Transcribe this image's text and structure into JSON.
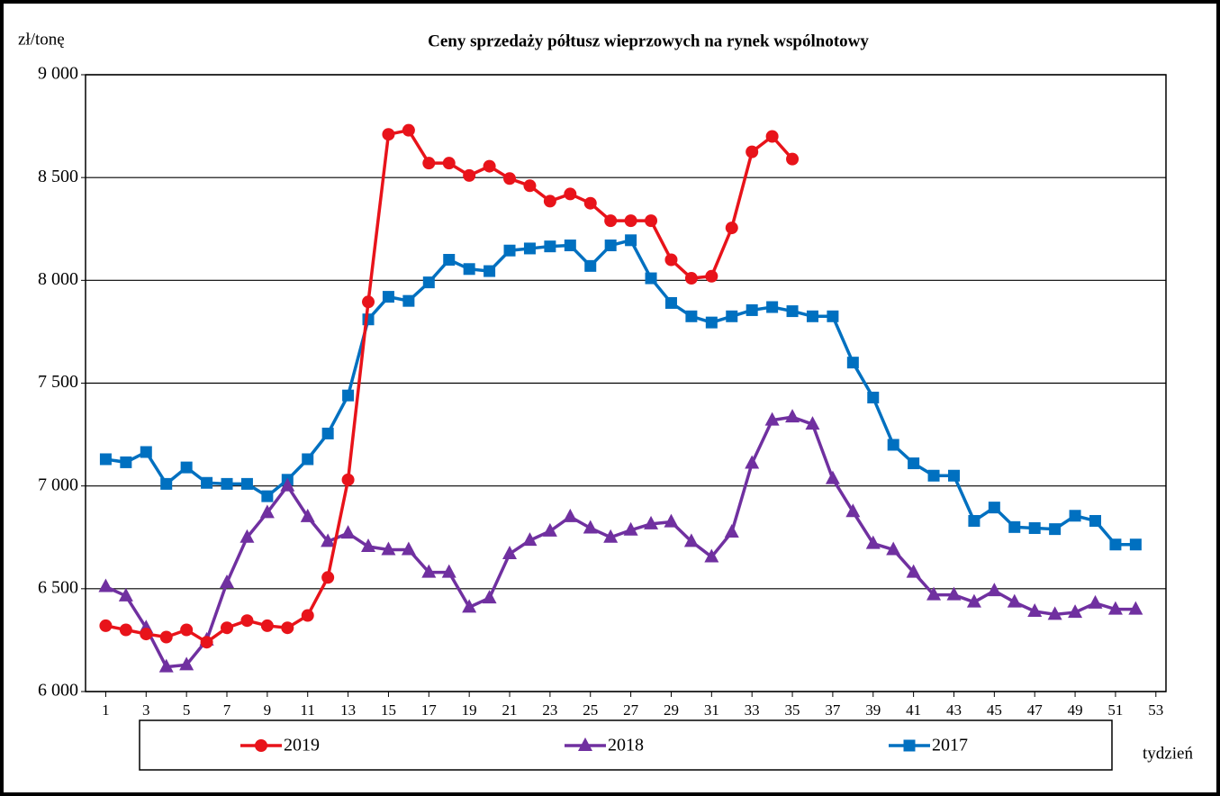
{
  "chart_data": {
    "type": "line",
    "title": "Ceny sprzedaży półtusz wieprzowych  na rynek wspólnotowy",
    "y_axis_label": "zł/tonę",
    "x_axis_label": "tydzień",
    "x": [
      1,
      2,
      3,
      4,
      5,
      6,
      7,
      8,
      9,
      10,
      11,
      12,
      13,
      14,
      15,
      16,
      17,
      18,
      19,
      20,
      21,
      22,
      23,
      24,
      25,
      26,
      27,
      28,
      29,
      30,
      31,
      32,
      33,
      34,
      35,
      36,
      37,
      38,
      39,
      40,
      41,
      42,
      43,
      44,
      45,
      46,
      47,
      48,
      49,
      50,
      51,
      52
    ],
    "xlim": [
      0,
      53.5
    ],
    "xticks": [
      1,
      3,
      5,
      7,
      9,
      11,
      13,
      15,
      17,
      19,
      21,
      23,
      25,
      27,
      29,
      31,
      33,
      35,
      37,
      39,
      41,
      43,
      45,
      47,
      49,
      51,
      53
    ],
    "ylim": [
      6000,
      9000
    ],
    "yticks": [
      {
        "value": 6000,
        "label": "6 000"
      },
      {
        "value": 6500,
        "label": "6 500"
      },
      {
        "value": 7000,
        "label": "7 000"
      },
      {
        "value": 7500,
        "label": "7 500"
      },
      {
        "value": 8000,
        "label": "8 000"
      },
      {
        "value": 8500,
        "label": "8 500"
      },
      {
        "value": 9000,
        "label": "9 000"
      }
    ],
    "grid": true,
    "legend": "bottom",
    "series": [
      {
        "name": "2019",
        "color": "#e8131a",
        "marker": "circle",
        "values": [
          6320,
          6300,
          6280,
          6265,
          6300,
          6240,
          6310,
          6345,
          6320,
          6310,
          6370,
          6555,
          7030,
          7895,
          8710,
          8730,
          8570,
          8570,
          8510,
          8555,
          8495,
          8460,
          8385,
          8420,
          8375,
          8290,
          8290,
          8290,
          8100,
          8010,
          8020,
          8255,
          8625,
          8700,
          8590,
          null,
          null,
          null,
          null,
          null,
          null,
          null,
          null,
          null,
          null,
          null,
          null,
          null,
          null,
          null,
          null,
          null
        ]
      },
      {
        "name": "2018",
        "color": "#7030a0",
        "marker": "triangle",
        "values": [
          6510,
          6465,
          6310,
          6120,
          6130,
          6250,
          6530,
          6750,
          6870,
          7000,
          6850,
          6730,
          6770,
          6705,
          6690,
          6690,
          6580,
          6580,
          6410,
          6455,
          6670,
          6735,
          6780,
          6850,
          6795,
          6750,
          6785,
          6815,
          6825,
          6730,
          6655,
          6775,
          7110,
          7320,
          7335,
          7300,
          7035,
          6875,
          6720,
          6690,
          6580,
          6470,
          6470,
          6435,
          6490,
          6435,
          6390,
          6375,
          6385,
          6430,
          6400,
          6400
        ]
      },
      {
        "name": "2017",
        "color": "#0070c0",
        "marker": "square",
        "values": [
          7130,
          7115,
          7165,
          7010,
          7090,
          7015,
          7010,
          7010,
          6950,
          7030,
          7130,
          7255,
          7440,
          7810,
          7920,
          7900,
          7990,
          8100,
          8055,
          8045,
          8145,
          8155,
          8165,
          8170,
          8070,
          8170,
          8195,
          8010,
          7890,
          7825,
          7795,
          7825,
          7855,
          7870,
          7850,
          7825,
          7825,
          7600,
          7430,
          7200,
          7110,
          7050,
          7050,
          6830,
          6895,
          6800,
          6795,
          6790,
          6855,
          6830,
          6715,
          6715
        ]
      }
    ]
  }
}
